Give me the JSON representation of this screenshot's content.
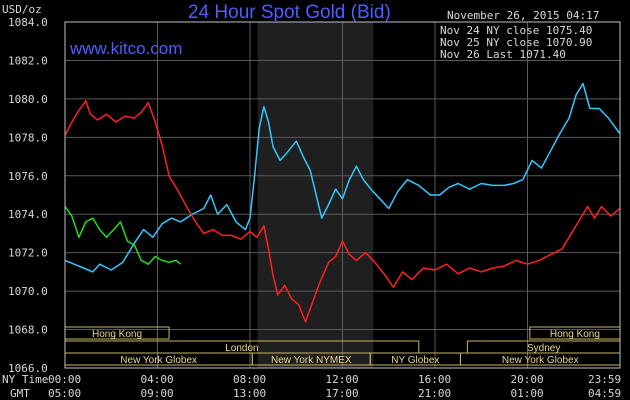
{
  "header": {
    "title": "24 Hour Spot Gold (Bid)",
    "brand": "www.kitco.com",
    "unit": "USD/oz",
    "timestamp": "November 26, 2015 04:17"
  },
  "legend": [
    {
      "text": "Nov 24 NY close 1075.40",
      "color": "#34c7ff"
    },
    {
      "text": "Nov 25 NY close 1070.90",
      "color": "#ff2020"
    },
    {
      "text": "Nov 26 Last 1071.40",
      "color": "#22dd22"
    }
  ],
  "sessions": [
    {
      "label": "Hong Kong",
      "row": 0,
      "start": 0,
      "end": 4.5
    },
    {
      "label": "Hong Kong",
      "row": 0,
      "start": 20.1,
      "end": 24
    },
    {
      "label": "London",
      "row": 1,
      "start": 0,
      "end": 15.3
    },
    {
      "label": "Sydney",
      "row": 1,
      "start": 17.4,
      "end": 24
    },
    {
      "label": "New York Globex",
      "row": 2,
      "start": 0,
      "end": 8.1
    },
    {
      "label": "New York NYMEX",
      "row": 2,
      "start": 8.1,
      "end": 13.2
    },
    {
      "label": "NY Globex",
      "row": 2,
      "start": 13.2,
      "end": 17.1
    },
    {
      "label": "New York Globex",
      "row": 2,
      "start": 17.1,
      "end": 24
    }
  ],
  "time_axis": {
    "row1_label": "NY Time",
    "row2_label": "GMT",
    "ny": [
      "00:00",
      "04:00",
      "08:00",
      "12:00",
      "16:00",
      "20:00",
      "23:59"
    ],
    "gmt": [
      "05:00",
      "09:00",
      "13:00",
      "17:00",
      "21:00",
      "01:00",
      "04:59"
    ]
  },
  "chart_data": {
    "type": "line",
    "title": "24 Hour Spot Gold (Bid)",
    "ylabel": "USD/oz",
    "ylim": [
      1066,
      1084
    ],
    "xlim": [
      0,
      24
    ],
    "y_ticks": [
      "1066.0",
      "1068.0",
      "1070.0",
      "1072.0",
      "1074.0",
      "1076.0",
      "1078.0",
      "1080.0",
      "1082.0",
      "1084.0"
    ],
    "grid": true,
    "legend_position": "top-right",
    "shaded_hours": [
      8.33,
      13.33
    ],
    "series": [
      {
        "name": "Nov 24 NY close 1075.40",
        "color": "#34c7ff",
        "points": [
          [
            0,
            1071.6
          ],
          [
            0.4,
            1071.4
          ],
          [
            0.8,
            1071.2
          ],
          [
            1.2,
            1071.0
          ],
          [
            1.5,
            1071.4
          ],
          [
            2.0,
            1071.1
          ],
          [
            2.5,
            1071.5
          ],
          [
            3.0,
            1072.5
          ],
          [
            3.4,
            1073.2
          ],
          [
            3.8,
            1072.8
          ],
          [
            4.2,
            1073.5
          ],
          [
            4.6,
            1073.8
          ],
          [
            5.0,
            1073.6
          ],
          [
            5.5,
            1074.0
          ],
          [
            6.0,
            1074.3
          ],
          [
            6.3,
            1075.0
          ],
          [
            6.6,
            1074.0
          ],
          [
            7.0,
            1074.5
          ],
          [
            7.4,
            1073.6
          ],
          [
            7.8,
            1073.2
          ],
          [
            8.0,
            1073.8
          ],
          [
            8.2,
            1076.0
          ],
          [
            8.4,
            1078.5
          ],
          [
            8.6,
            1079.6
          ],
          [
            8.8,
            1078.8
          ],
          [
            9.0,
            1077.5
          ],
          [
            9.3,
            1076.8
          ],
          [
            9.6,
            1077.2
          ],
          [
            10.0,
            1077.8
          ],
          [
            10.3,
            1077.0
          ],
          [
            10.6,
            1076.3
          ],
          [
            10.9,
            1074.8
          ],
          [
            11.1,
            1073.8
          ],
          [
            11.4,
            1074.5
          ],
          [
            11.7,
            1075.3
          ],
          [
            12.0,
            1074.8
          ],
          [
            12.3,
            1075.8
          ],
          [
            12.6,
            1076.5
          ],
          [
            12.9,
            1075.8
          ],
          [
            13.3,
            1075.2
          ],
          [
            13.7,
            1074.7
          ],
          [
            14.0,
            1074.3
          ],
          [
            14.4,
            1075.2
          ],
          [
            14.8,
            1075.8
          ],
          [
            15.3,
            1075.5
          ],
          [
            15.8,
            1075.0
          ],
          [
            16.2,
            1075.0
          ],
          [
            16.6,
            1075.4
          ],
          [
            17.0,
            1075.6
          ],
          [
            17.5,
            1075.3
          ],
          [
            18.0,
            1075.6
          ],
          [
            18.5,
            1075.5
          ],
          [
            19.0,
            1075.5
          ],
          [
            19.4,
            1075.6
          ],
          [
            19.8,
            1075.8
          ],
          [
            20.2,
            1076.8
          ],
          [
            20.6,
            1076.4
          ],
          [
            21.0,
            1077.3
          ],
          [
            21.4,
            1078.2
          ],
          [
            21.8,
            1079.0
          ],
          [
            22.1,
            1080.2
          ],
          [
            22.4,
            1080.8
          ],
          [
            22.7,
            1079.5
          ],
          [
            23.1,
            1079.5
          ],
          [
            23.5,
            1079.0
          ],
          [
            23.99,
            1078.2
          ]
        ]
      },
      {
        "name": "Nov 25 NY close 1070.90",
        "color": "#ff2020",
        "points": [
          [
            0,
            1078.1
          ],
          [
            0.3,
            1078.8
          ],
          [
            0.6,
            1079.4
          ],
          [
            0.9,
            1079.9
          ],
          [
            1.1,
            1079.2
          ],
          [
            1.4,
            1078.9
          ],
          [
            1.8,
            1079.2
          ],
          [
            2.2,
            1078.8
          ],
          [
            2.6,
            1079.1
          ],
          [
            3.0,
            1079.0
          ],
          [
            3.3,
            1079.3
          ],
          [
            3.6,
            1079.8
          ],
          [
            3.9,
            1078.8
          ],
          [
            4.2,
            1077.6
          ],
          [
            4.5,
            1076.0
          ],
          [
            4.9,
            1075.2
          ],
          [
            5.3,
            1074.3
          ],
          [
            5.7,
            1073.5
          ],
          [
            6.0,
            1073.0
          ],
          [
            6.4,
            1073.2
          ],
          [
            6.8,
            1072.9
          ],
          [
            7.2,
            1072.9
          ],
          [
            7.6,
            1072.7
          ],
          [
            8.0,
            1073.1
          ],
          [
            8.3,
            1072.8
          ],
          [
            8.6,
            1073.4
          ],
          [
            8.8,
            1072.2
          ],
          [
            9.0,
            1070.8
          ],
          [
            9.2,
            1069.8
          ],
          [
            9.5,
            1070.3
          ],
          [
            9.8,
            1069.6
          ],
          [
            10.1,
            1069.3
          ],
          [
            10.4,
            1068.4
          ],
          [
            10.7,
            1069.4
          ],
          [
            11.0,
            1070.4
          ],
          [
            11.4,
            1071.5
          ],
          [
            11.7,
            1071.8
          ],
          [
            12.0,
            1072.6
          ],
          [
            12.3,
            1071.9
          ],
          [
            12.6,
            1071.6
          ],
          [
            13.0,
            1072.0
          ],
          [
            13.4,
            1071.5
          ],
          [
            13.8,
            1070.9
          ],
          [
            14.2,
            1070.2
          ],
          [
            14.6,
            1071.0
          ],
          [
            15.0,
            1070.6
          ],
          [
            15.5,
            1071.2
          ],
          [
            16.0,
            1071.1
          ],
          [
            16.5,
            1071.4
          ],
          [
            17.0,
            1070.9
          ],
          [
            17.5,
            1071.2
          ],
          [
            18.0,
            1071.0
          ],
          [
            18.5,
            1071.2
          ],
          [
            19.0,
            1071.3
          ],
          [
            19.5,
            1071.6
          ],
          [
            20.0,
            1071.4
          ],
          [
            20.5,
            1071.6
          ],
          [
            21.0,
            1071.9
          ],
          [
            21.5,
            1072.2
          ],
          [
            21.9,
            1073.0
          ],
          [
            22.3,
            1073.8
          ],
          [
            22.6,
            1074.4
          ],
          [
            22.9,
            1073.8
          ],
          [
            23.2,
            1074.4
          ],
          [
            23.6,
            1073.9
          ],
          [
            23.99,
            1074.3
          ]
        ]
      },
      {
        "name": "Nov 26 Last 1071.40",
        "color": "#22dd22",
        "points": [
          [
            0,
            1074.4
          ],
          [
            0.3,
            1073.9
          ],
          [
            0.6,
            1072.8
          ],
          [
            0.9,
            1073.6
          ],
          [
            1.2,
            1073.8
          ],
          [
            1.5,
            1073.2
          ],
          [
            1.8,
            1072.8
          ],
          [
            2.1,
            1073.2
          ],
          [
            2.4,
            1073.6
          ],
          [
            2.7,
            1072.6
          ],
          [
            3.0,
            1072.4
          ],
          [
            3.3,
            1071.6
          ],
          [
            3.6,
            1071.4
          ],
          [
            3.9,
            1071.8
          ],
          [
            4.2,
            1071.6
          ],
          [
            4.5,
            1071.5
          ],
          [
            4.8,
            1071.6
          ],
          [
            5.0,
            1071.4
          ]
        ]
      }
    ]
  }
}
